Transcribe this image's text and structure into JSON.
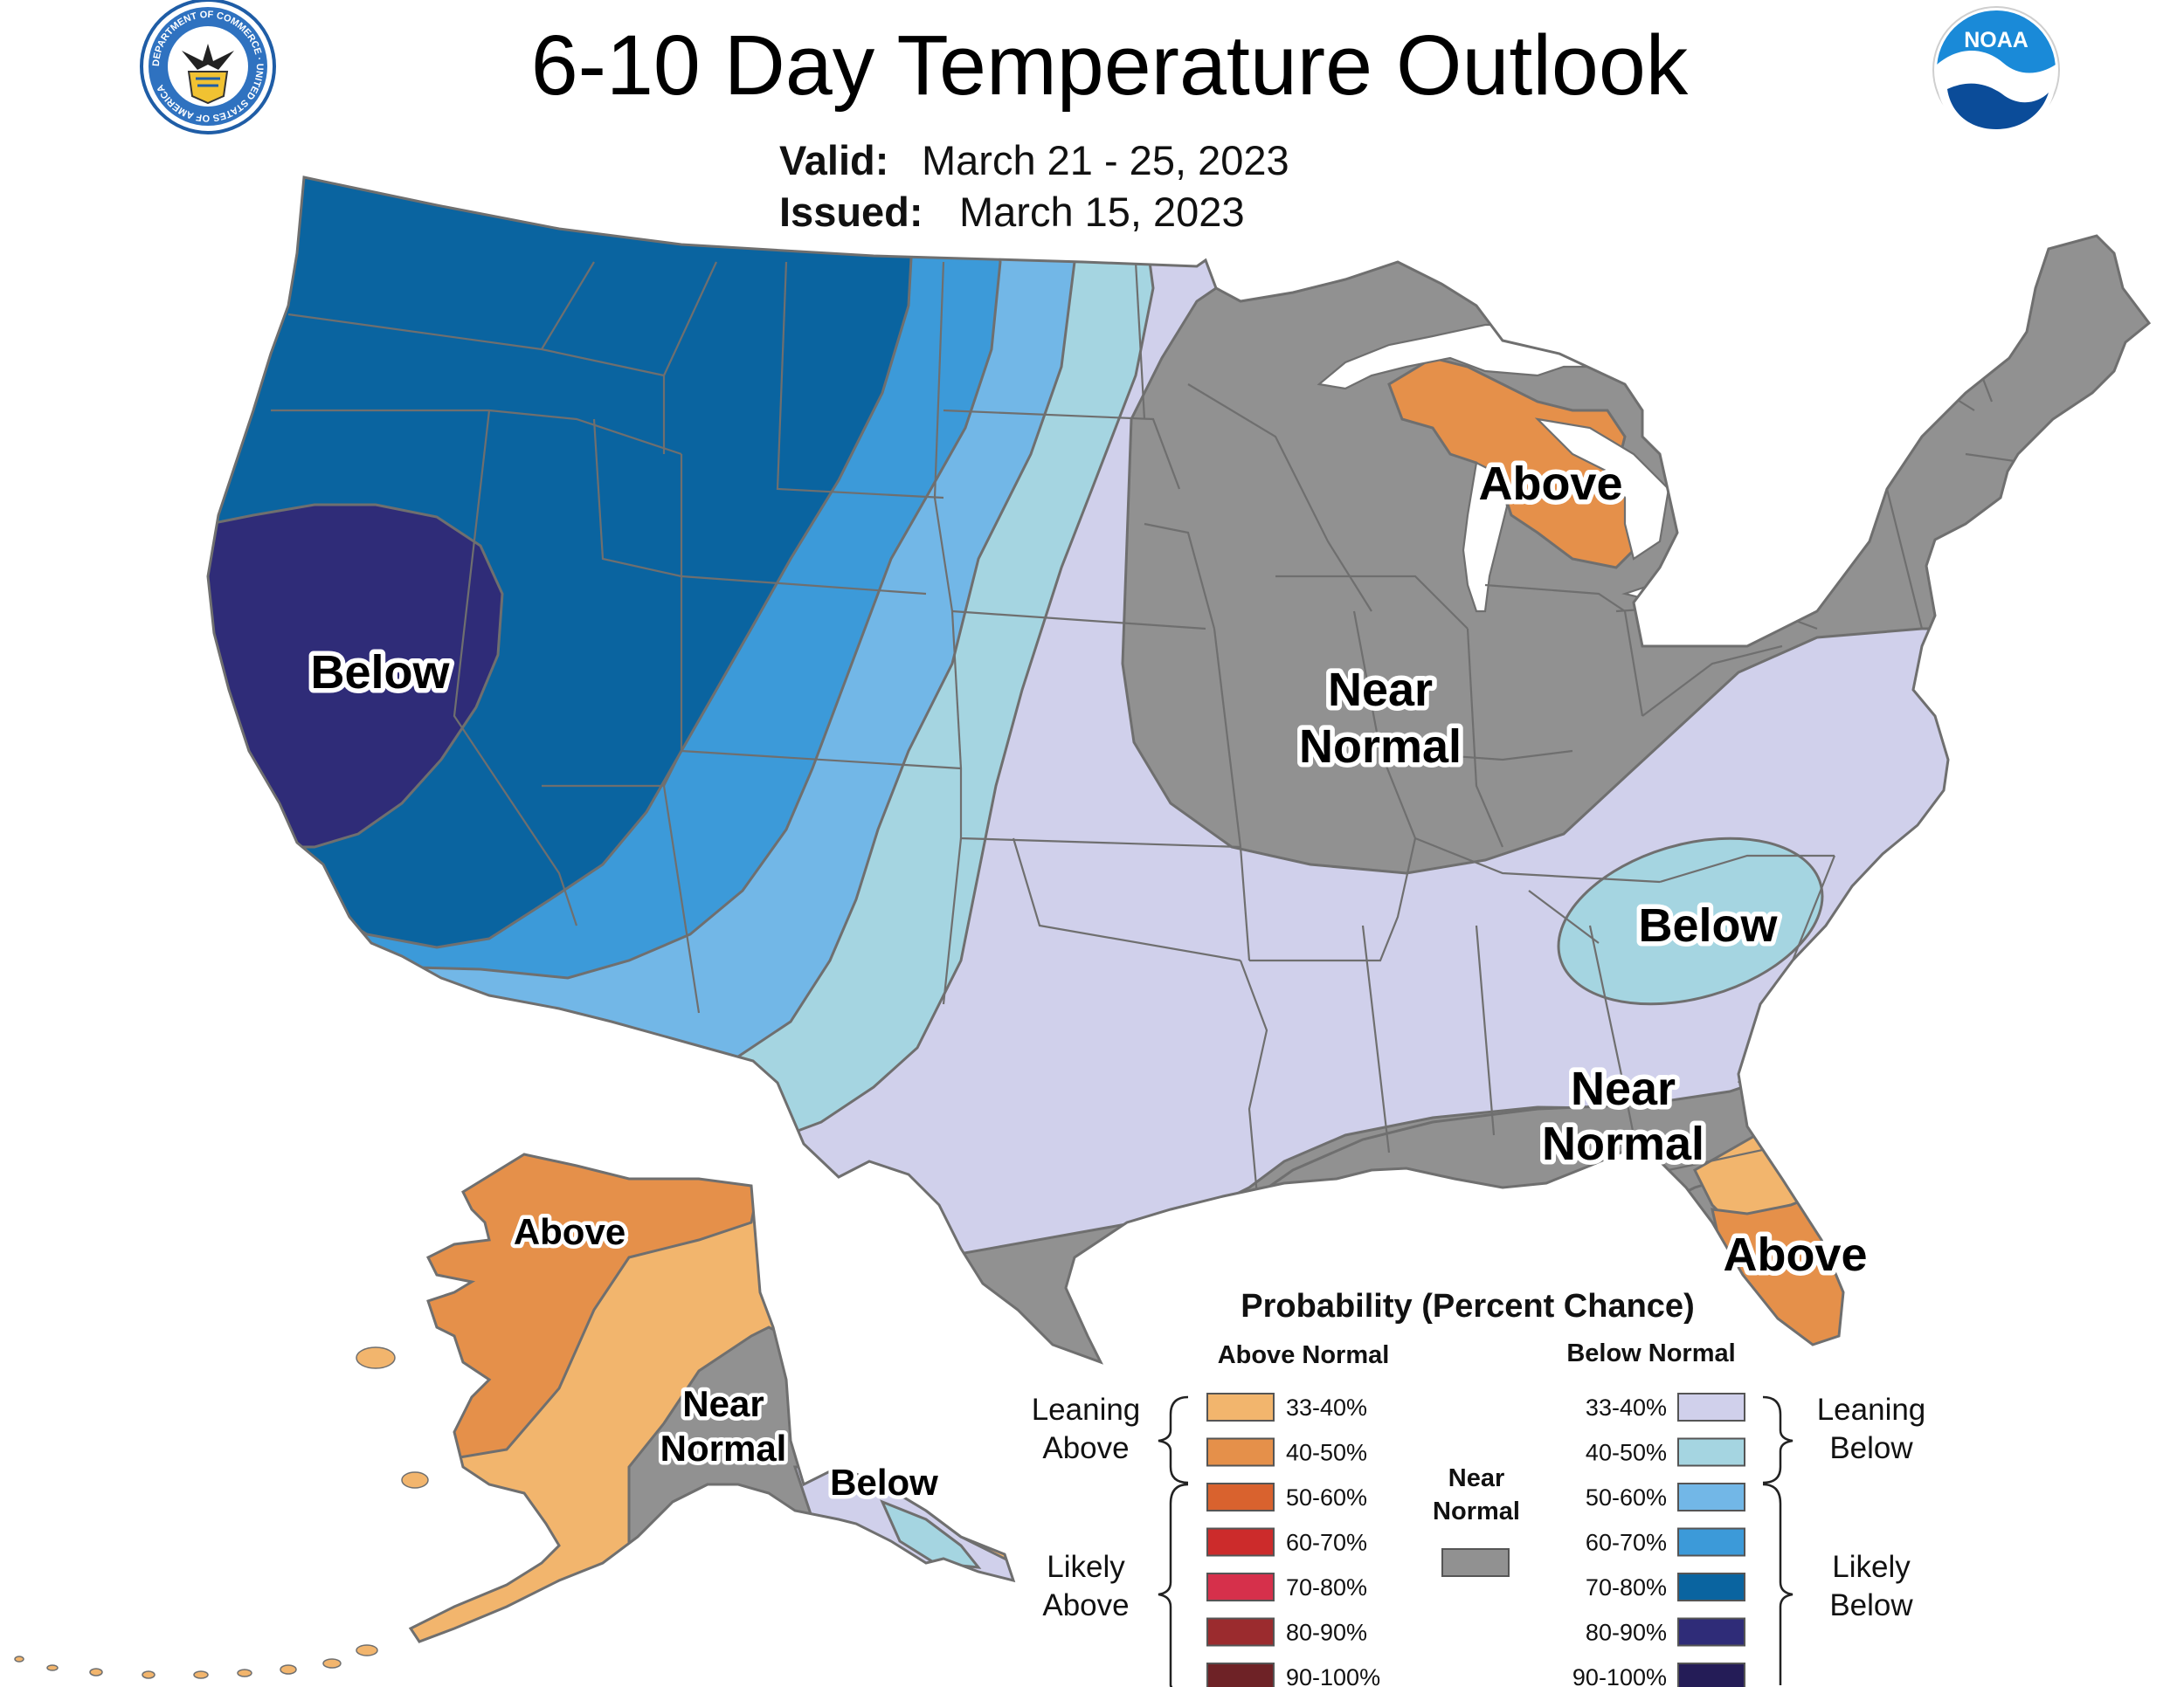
{
  "header": {
    "title": "6-10 Day Temperature Outlook",
    "valid_label": "Valid:",
    "valid_value": "March 21 - 25, 2023",
    "issued_label": "Issued:",
    "issued_value": "March 15, 2023"
  },
  "logos": {
    "doc_seal": "department-of-commerce-seal",
    "doc_ring_text": "DEPARTMENT OF COMMERCE · UNITED STATES OF AMERICA",
    "noaa_logo": "noaa-logo",
    "noaa_text": "NOAA"
  },
  "colors": {
    "above_33_40": "#f2b56d",
    "above_40_50": "#e5904a",
    "above_50_60": "#d9622e",
    "above_60_70": "#cc2b2b",
    "above_70_80": "#d6304b",
    "above_80_90": "#9b2b2e",
    "above_90_100": "#6e2226",
    "near_normal": "#919191",
    "below_33_40": "#d0d0eb",
    "below_40_50": "#a5d5e1",
    "below_50_60": "#72b7e7",
    "below_60_70": "#3c9ad9",
    "below_70_80": "#0a64a0",
    "below_80_90": "#2f2c78",
    "below_90_100": "#241c57",
    "water": "#ffffff"
  },
  "map_labels": {
    "ca_below": "Below",
    "mi_above": "Above",
    "midwest_near_1": "Near",
    "midwest_near_2": "Normal",
    "se_below": "Below",
    "gulf_near_1": "Near",
    "gulf_near_2": "Normal",
    "fl_above": "Above",
    "ak_above": "Above",
    "ak_near_1": "Near",
    "ak_near_2": "Normal",
    "ak_below": "Below"
  },
  "legend": {
    "title": "Probability (Percent Chance)",
    "above_header": "Above Normal",
    "below_header": "Below Normal",
    "near_normal_1": "Near",
    "near_normal_2": "Normal",
    "leaning_above_1": "Leaning",
    "leaning_above_2": "Above",
    "likely_above_1": "Likely",
    "likely_above_2": "Above",
    "leaning_below_1": "Leaning",
    "leaning_below_2": "Below",
    "likely_below_1": "Likely",
    "likely_below_2": "Below",
    "above_ranges": [
      "33-40%",
      "40-50%",
      "50-60%",
      "60-70%",
      "70-80%",
      "80-90%",
      "90-100%"
    ],
    "below_ranges": [
      "33-40%",
      "40-50%",
      "50-60%",
      "60-70%",
      "70-80%",
      "80-90%",
      "90-100%"
    ]
  }
}
